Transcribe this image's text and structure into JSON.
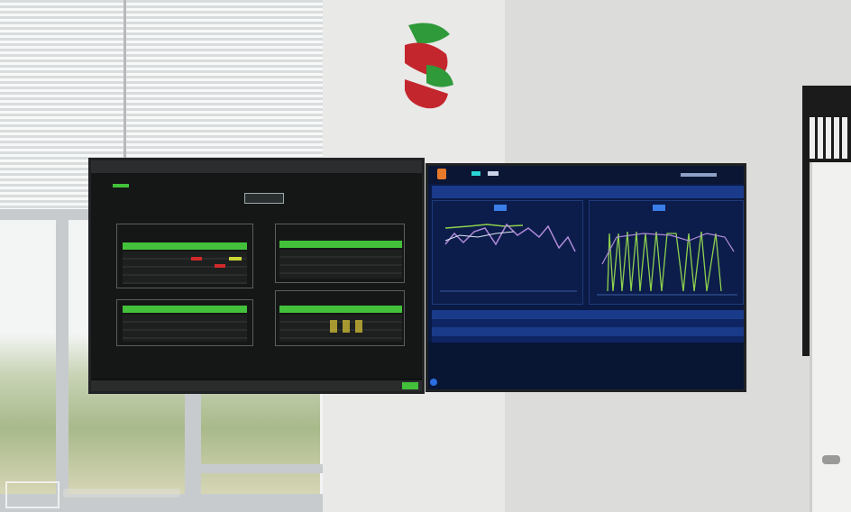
{
  "scene": {
    "description_type": "photo of two wall-mounted monitors",
    "colors": {
      "wall": "#e9e9e7",
      "left_screen_bg": "#151716",
      "left_screen_accent": "#43c13b",
      "right_screen_bg": "#0a1a44",
      "right_screen_accent": "#1a3a8c",
      "line_green": "#8fd14f",
      "line_purple": "#b08ad8",
      "logo_red": "#c4262e",
      "logo_green": "#2f9a3a"
    },
    "icons": [
      "company-logo",
      "camera-watermark"
    ]
  }
}
